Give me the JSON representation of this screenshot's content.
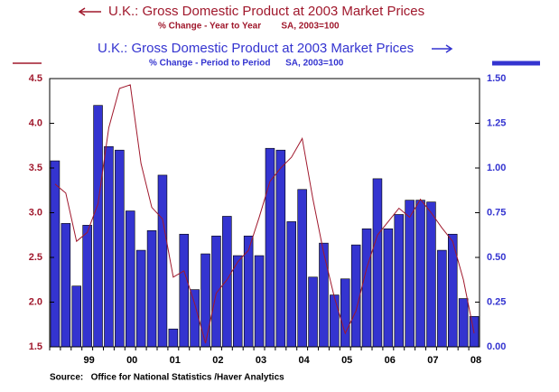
{
  "chart_data": {
    "type": "bar_line",
    "source": "Source:   Office for National Statistics /Haver Analytics",
    "categories": [
      null,
      null,
      null,
      "99",
      null,
      null,
      null,
      "00",
      null,
      null,
      null,
      "01",
      null,
      null,
      null,
      "02",
      null,
      null,
      null,
      "03",
      null,
      null,
      null,
      "04",
      null,
      null,
      null,
      "05",
      null,
      null,
      null,
      "06",
      null,
      null,
      null,
      "07",
      null,
      null,
      null,
      "08"
    ],
    "series": [
      {
        "name": "U.K.: Gross Domestic Product at 2003 Market Prices",
        "subtitle": "% Change - Year to Year        SA, 2003=100",
        "type": "line",
        "axis": "y",
        "color": "#a0182c",
        "values": [
          3.32,
          3.22,
          2.68,
          2.78,
          3.1,
          3.95,
          4.39,
          4.43,
          3.55,
          3.06,
          2.93,
          2.28,
          2.35,
          1.98,
          1.54,
          2.1,
          2.25,
          2.45,
          2.58,
          2.95,
          3.35,
          3.5,
          3.62,
          3.83,
          3.15,
          2.55,
          2.05,
          1.65,
          1.9,
          2.38,
          2.75,
          2.9,
          3.05,
          2.95,
          3.15,
          3.0,
          2.83,
          2.68,
          2.25,
          1.65
        ]
      },
      {
        "name": "U.K.: Gross Domestic Product at 2003 Market Prices",
        "subtitle": "% Change - Period to Period      SA, 2003=100",
        "type": "bar",
        "axis": "y2",
        "color": "#3434d0",
        "values": [
          1.04,
          0.69,
          0.34,
          0.68,
          1.35,
          1.12,
          1.1,
          0.76,
          0.54,
          0.65,
          0.96,
          0.1,
          0.63,
          0.32,
          0.52,
          0.62,
          0.73,
          0.51,
          0.62,
          0.51,
          1.11,
          1.1,
          0.7,
          0.88,
          0.39,
          0.58,
          0.29,
          0.38,
          0.57,
          0.66,
          0.94,
          0.66,
          0.74,
          0.82,
          0.82,
          0.81,
          0.54,
          0.63,
          0.27,
          0.17
        ]
      }
    ],
    "ylim": [
      1.5,
      4.5
    ],
    "yticks": [
      1.5,
      {
        "value": 2,
        "label": "2.0"
      },
      2.5,
      {
        "value": 3,
        "label": "3.0"
      },
      3.5,
      {
        "value": 4,
        "label": "4.0"
      },
      4.5
    ],
    "y2lim": [
      0,
      1.5
    ],
    "y2ticks": [
      {
        "value": 0,
        "label": "0.00"
      },
      {
        "value": 0.25,
        "label": "0.25"
      },
      {
        "value": 0.5,
        "label": "0.50"
      },
      {
        "value": 0.75,
        "label": "0.75"
      },
      {
        "value": 1,
        "label": "1.00"
      },
      {
        "value": 1.25,
        "label": "1.25"
      },
      {
        "value": 1.5,
        "label": "1.50"
      }
    ]
  }
}
